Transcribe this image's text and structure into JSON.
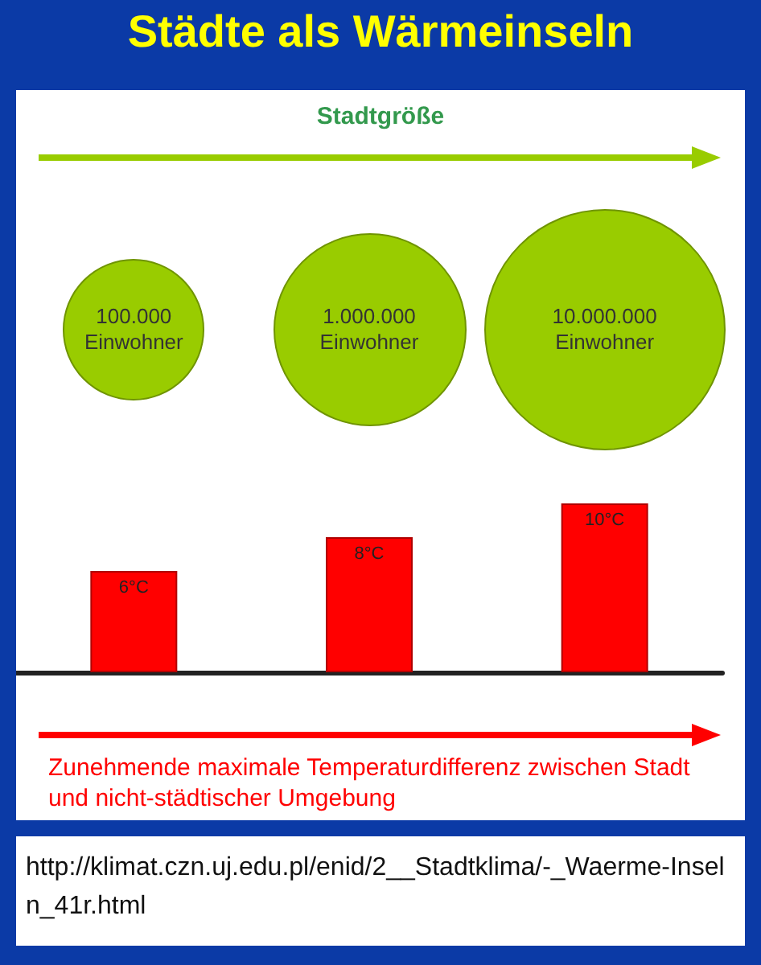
{
  "chart_data": {
    "type": "bar",
    "title": "Städte als Wärmeinseln",
    "categories": [
      "100.000 Einwohner",
      "1.000.000 Einwohner",
      "10.000.000 Einwohner"
    ],
    "values": [
      6,
      8,
      10
    ],
    "color": "#ff0000",
    "value_labels": [
      "6°C",
      "8°C",
      "10°C"
    ],
    "annotations": [
      "Stadtgröße",
      "Zunehmende maximale Temperaturdifferenz zwischen Stadt und nicht-städtischer Umgebung",
      "http://klimat.czn.uj.edu.pl/enid/2__Stadtklima/-_Waerme-Inseln_41r.html"
    ]
  }
}
